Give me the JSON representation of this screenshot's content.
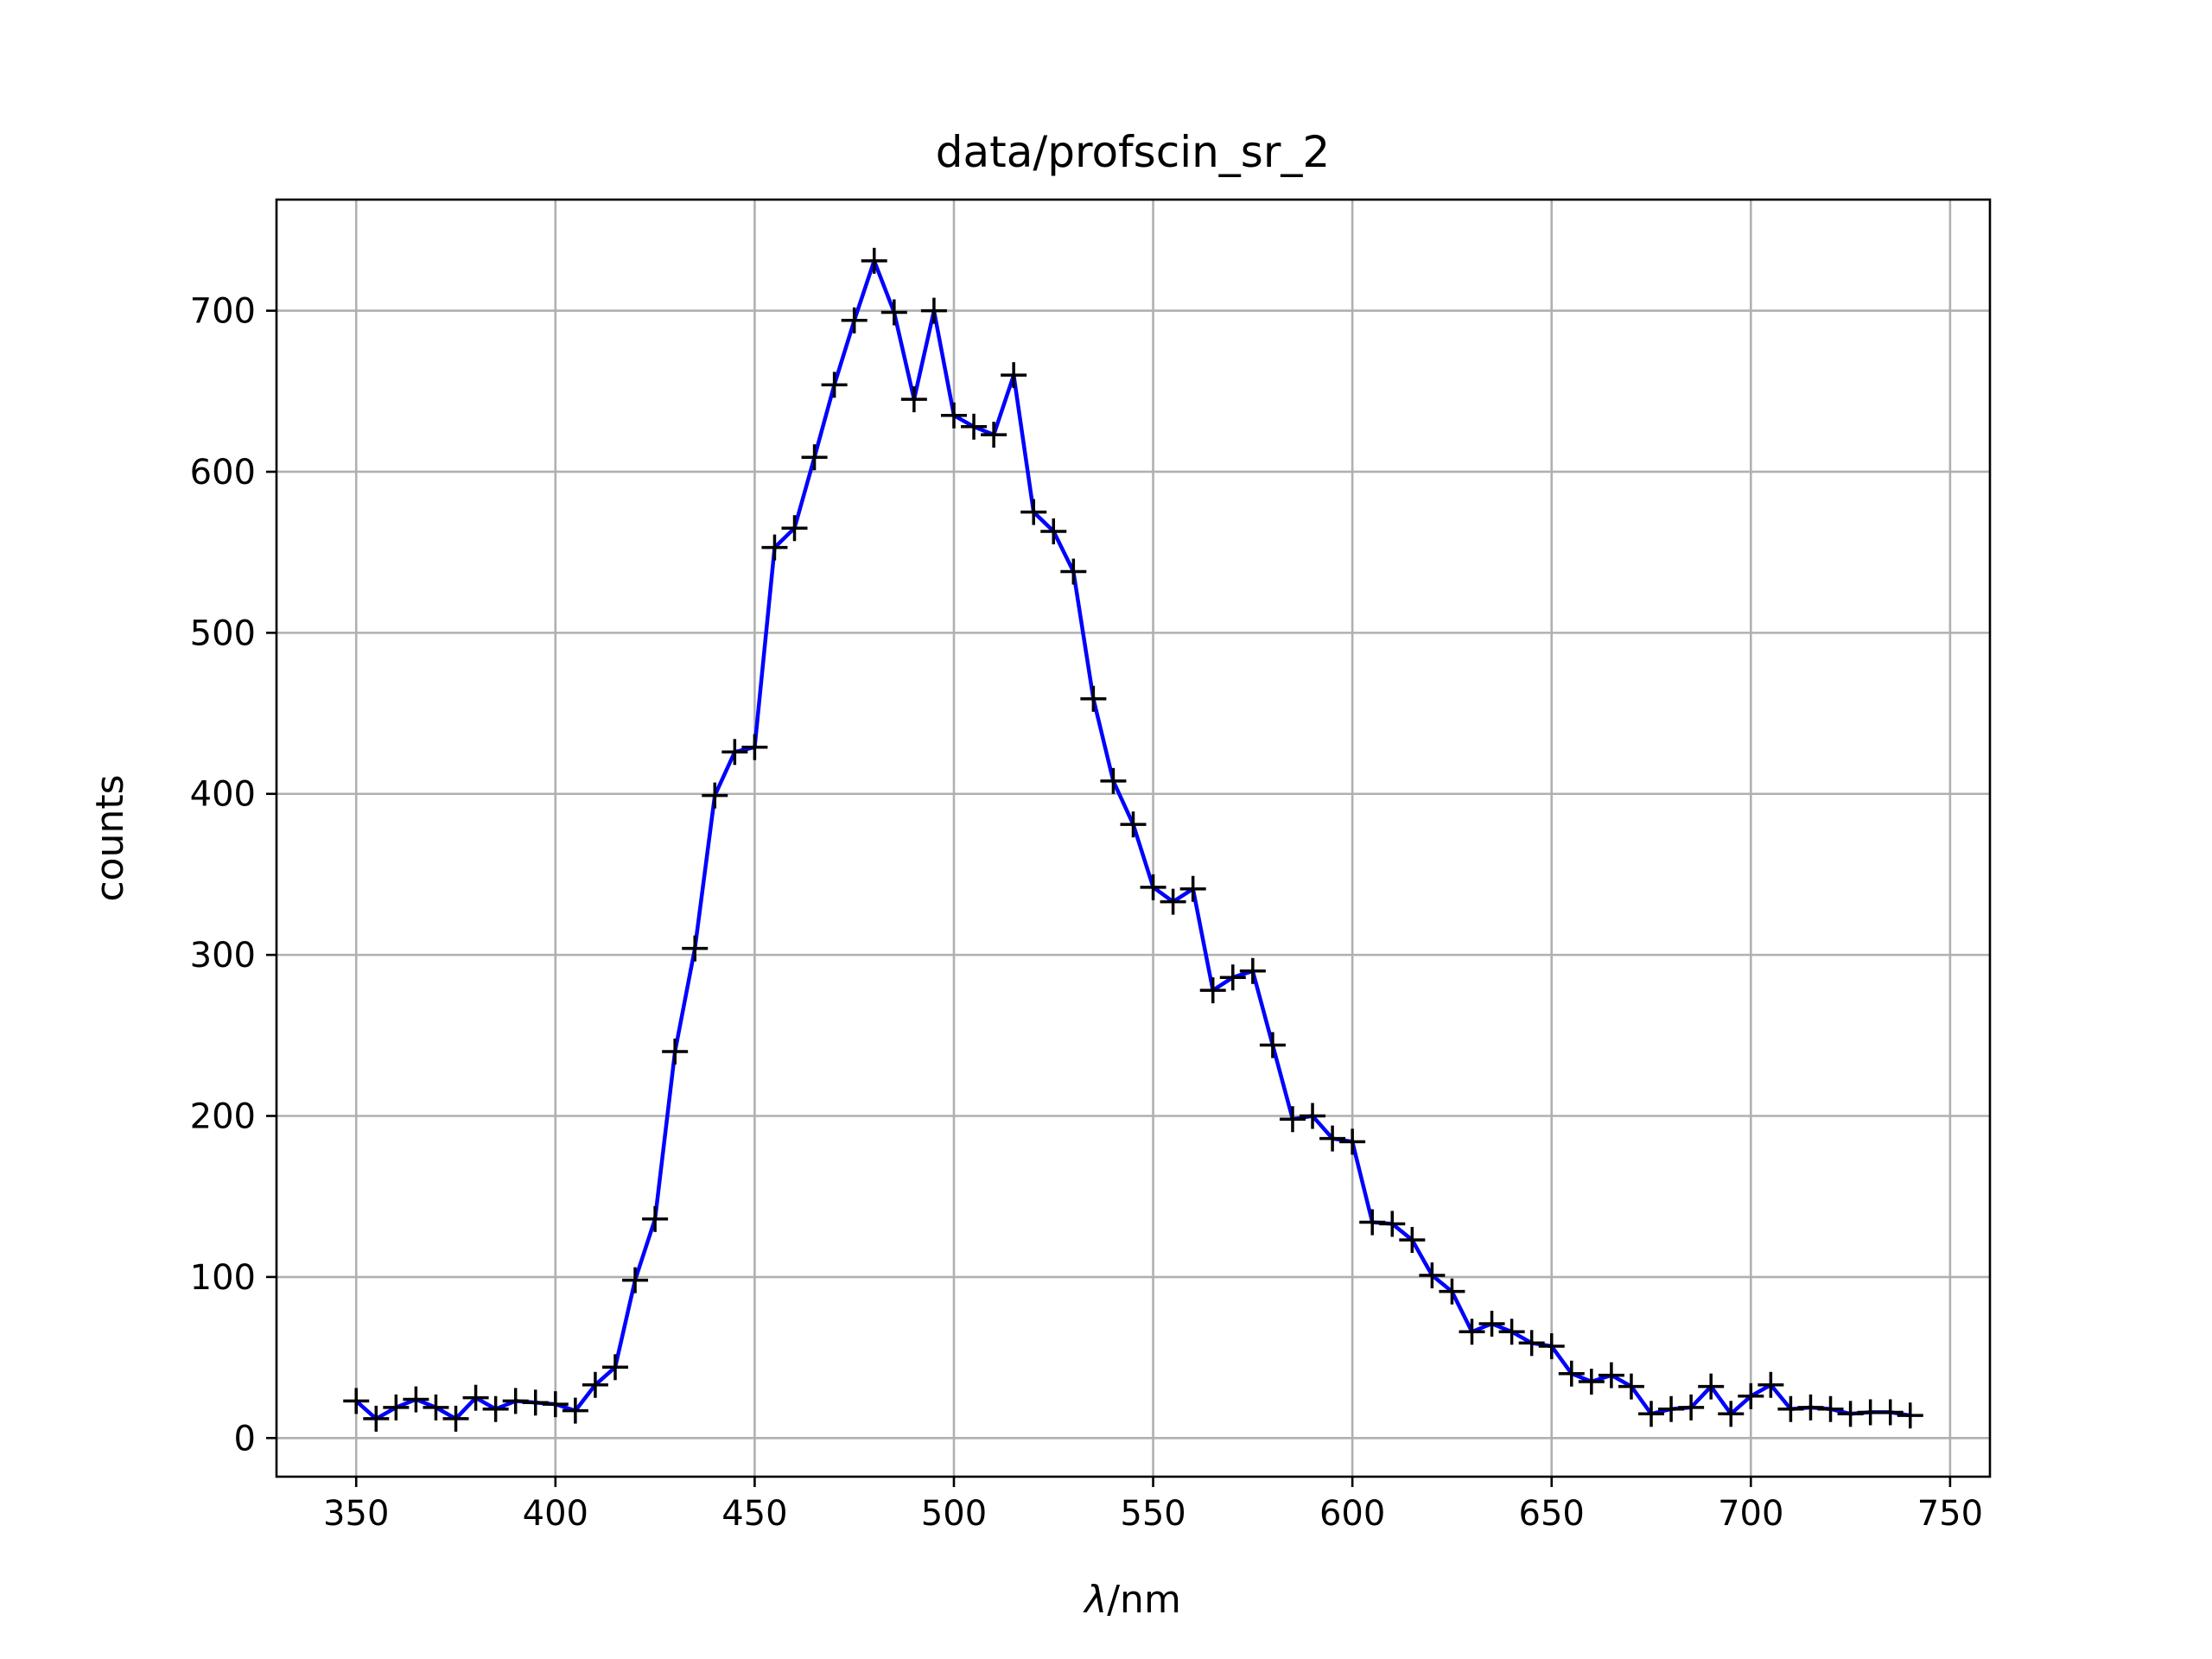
{
  "chart_data": {
    "type": "line",
    "title": "data/profscin_sr_2",
    "xlabel_symbol": "λ",
    "xlabel_unit": "/nm",
    "ylabel": "counts",
    "xlim": [
      330,
      760
    ],
    "ylim": [
      -24,
      769
    ],
    "xticks": [
      350,
      400,
      450,
      500,
      550,
      600,
      650,
      700,
      750
    ],
    "yticks": [
      0,
      100,
      200,
      300,
      400,
      500,
      600,
      700
    ],
    "grid": true,
    "marker": "+",
    "colors": {
      "line": "#0000ff",
      "marker": "#000000",
      "grid": "#b0b0b0"
    },
    "x": [
      350,
      355,
      360,
      365,
      370,
      375,
      380,
      385,
      390,
      395,
      400,
      405,
      410,
      415,
      420,
      425,
      430,
      435,
      440,
      445,
      450,
      455,
      460,
      465,
      470,
      475,
      480,
      485,
      490,
      495,
      500,
      505,
      510,
      515,
      520,
      525,
      530,
      535,
      540,
      545,
      550,
      555,
      560,
      565,
      570,
      575,
      580,
      585,
      590,
      595,
      600,
      605,
      610,
      615,
      620,
      625,
      630,
      635,
      640,
      645,
      650,
      655,
      660,
      665,
      670,
      675,
      680,
      685,
      690,
      695,
      700,
      705,
      710,
      715,
      720,
      725,
      730,
      735,
      740
    ],
    "y": [
      23,
      12,
      19,
      24,
      19,
      12,
      25,
      18,
      23,
      22,
      21,
      17,
      33,
      44,
      98,
      136,
      240,
      304,
      399,
      426,
      429,
      553,
      565,
      609,
      654,
      694,
      731,
      699,
      645,
      700,
      635,
      628,
      623,
      660,
      575,
      563,
      538,
      459,
      408,
      381,
      342,
      333,
      341,
      278,
      286,
      290,
      244,
      198,
      200,
      186,
      184,
      134,
      133,
      123,
      101,
      91,
      66,
      71,
      66,
      59,
      57,
      40,
      35,
      39,
      32,
      15,
      18,
      19,
      32,
      15,
      26,
      33,
      18,
      19,
      18,
      15,
      16,
      16,
      14
    ]
  }
}
